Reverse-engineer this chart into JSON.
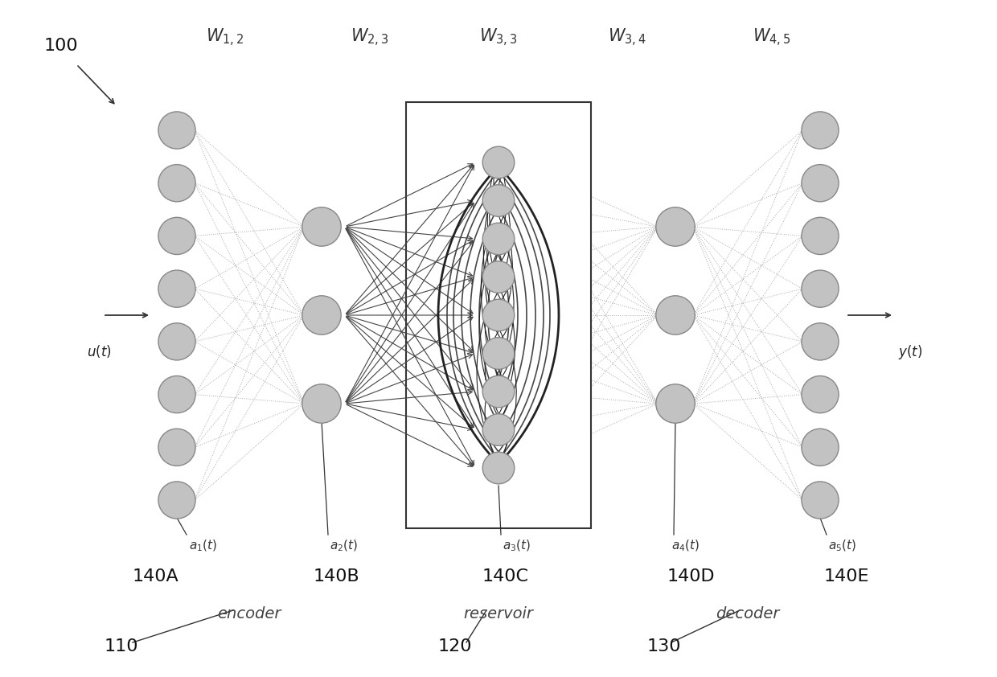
{
  "bg_color": "#ffffff",
  "node_color": "#c2c2c2",
  "node_edge_color": "#888888",
  "w12": "$W_{1,2}$",
  "w23": "$W_{2,3}$",
  "w33": "$W_{3,3}$",
  "w34": "$W_{3,4}$",
  "w45": "$W_{4,5}$",
  "a1t": "$a_1(t)$",
  "a2t": "$a_2(t)$",
  "a3t": "$a_3(t)$",
  "a4t": "$a_4(t)$",
  "a5t": "$a_5(t)$",
  "ut": "$u(t)$",
  "yt": "$y(t)$",
  "encoder_label": "encoder",
  "reservoir_label": "reservoir",
  "decoder_label": "decoder",
  "label_110": "110",
  "label_120": "120",
  "label_130": "130",
  "label_140A": "140A",
  "label_140B": "140B",
  "label_140C": "140C",
  "label_140D": "140D",
  "label_140E": "140E",
  "label_100": "100"
}
